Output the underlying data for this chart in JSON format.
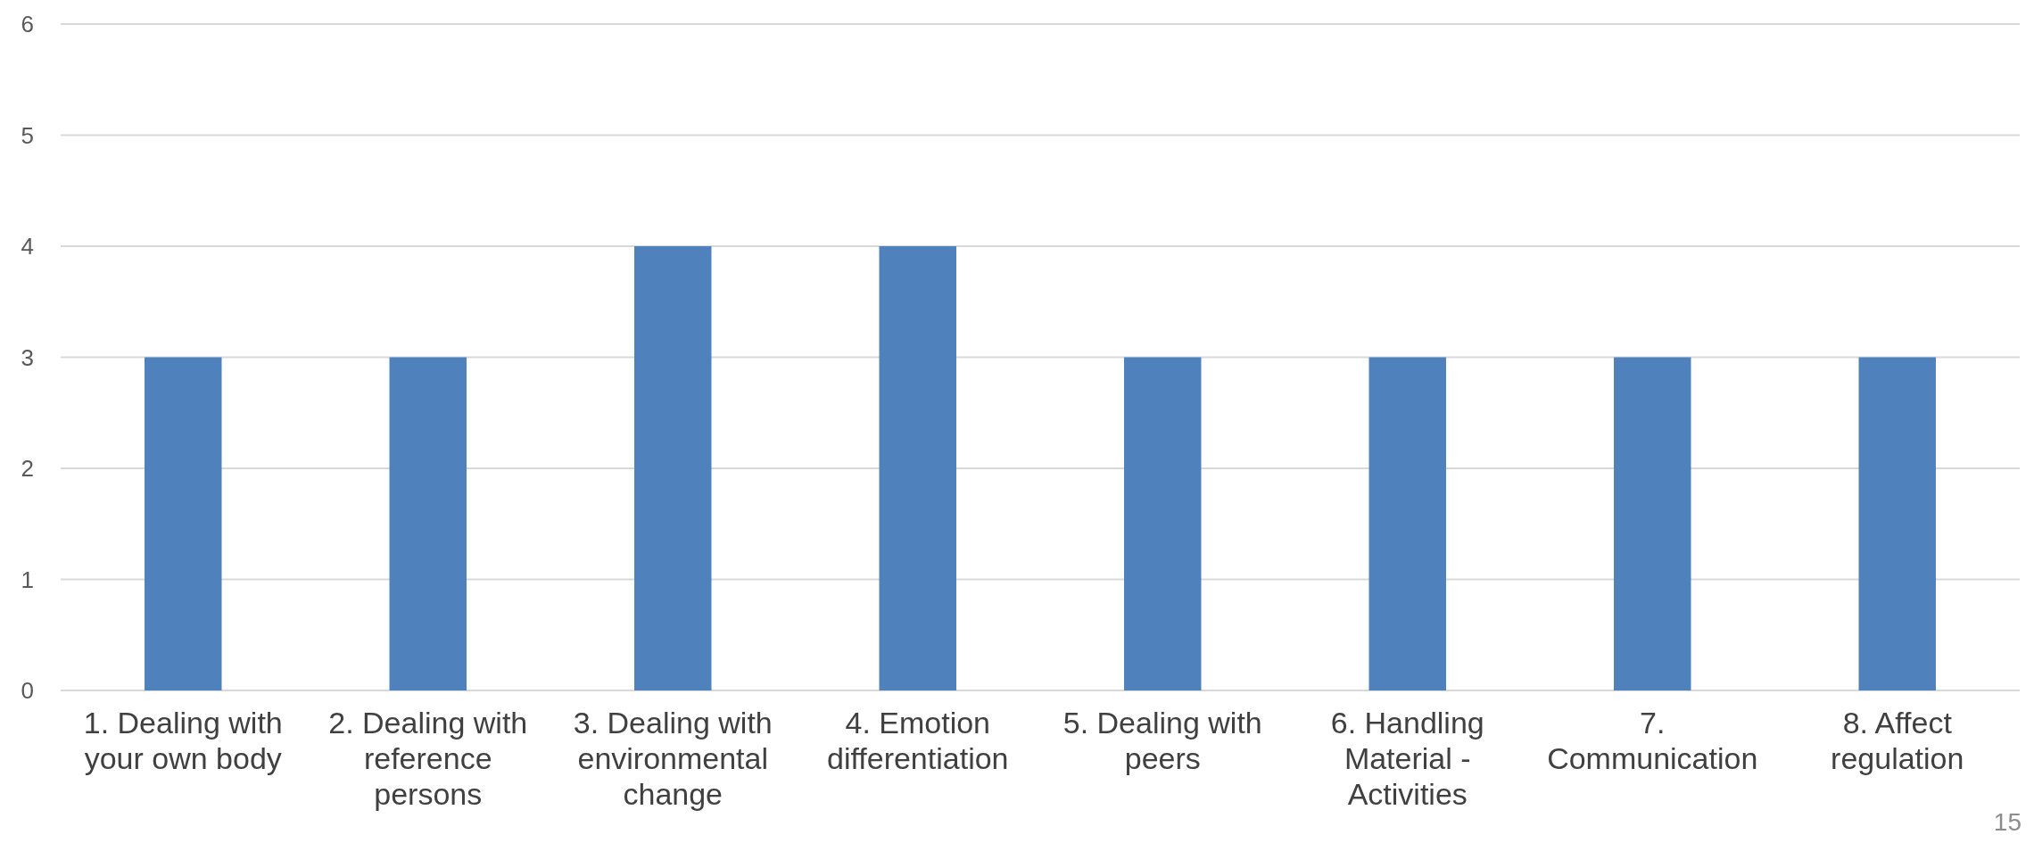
{
  "chart_data": {
    "type": "bar",
    "categories": [
      "1. Dealing with your own body",
      "2. Dealing with reference persons",
      "3. Dealing with environmental change",
      "4. Emotion differentiation",
      "5. Dealing with peers",
      "6. Handling Material - Activities",
      "7. Communication",
      "8. Affect regulation"
    ],
    "values": [
      3,
      3,
      4,
      4,
      3,
      3,
      3,
      3
    ],
    "color": "#4f81bd",
    "ylim": [
      0,
      6
    ],
    "yticks": [
      0,
      1,
      2,
      3,
      4,
      5,
      6
    ],
    "grid": "y",
    "annotations": [
      "15"
    ]
  }
}
